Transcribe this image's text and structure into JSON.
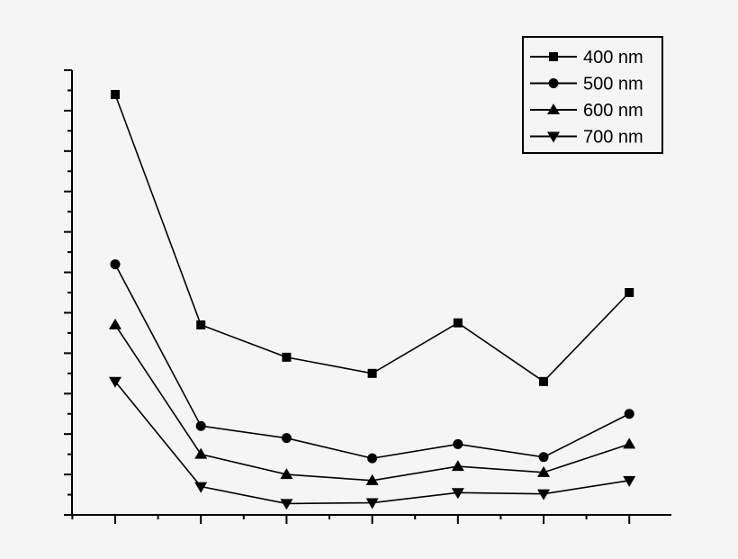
{
  "chart_data": {
    "type": "line",
    "title": "",
    "xlabel": "",
    "ylabel": "",
    "x": [
      1,
      2,
      3,
      4,
      5,
      6,
      7
    ],
    "xlim": [
      0.5,
      7.5
    ],
    "ylim": [
      0,
      11
    ],
    "grid": false,
    "legend_position": "top-right",
    "series": [
      {
        "name": "400 nm",
        "marker": "square",
        "values": [
          10.4,
          4.7,
          3.9,
          3.5,
          4.75,
          3.3,
          5.5
        ]
      },
      {
        "name": "500 nm",
        "marker": "circle",
        "values": [
          6.2,
          2.2,
          1.9,
          1.4,
          1.75,
          1.43,
          2.5
        ]
      },
      {
        "name": "600 nm",
        "marker": "triangle-up",
        "values": [
          4.7,
          1.5,
          1.0,
          0.85,
          1.2,
          1.05,
          1.75
        ]
      },
      {
        "name": "700 nm",
        "marker": "triangle-down",
        "values": [
          3.3,
          0.7,
          0.28,
          0.3,
          0.55,
          0.52,
          0.85
        ]
      }
    ],
    "colors": {
      "line": "#000000",
      "background": "#f5f5f5"
    }
  }
}
